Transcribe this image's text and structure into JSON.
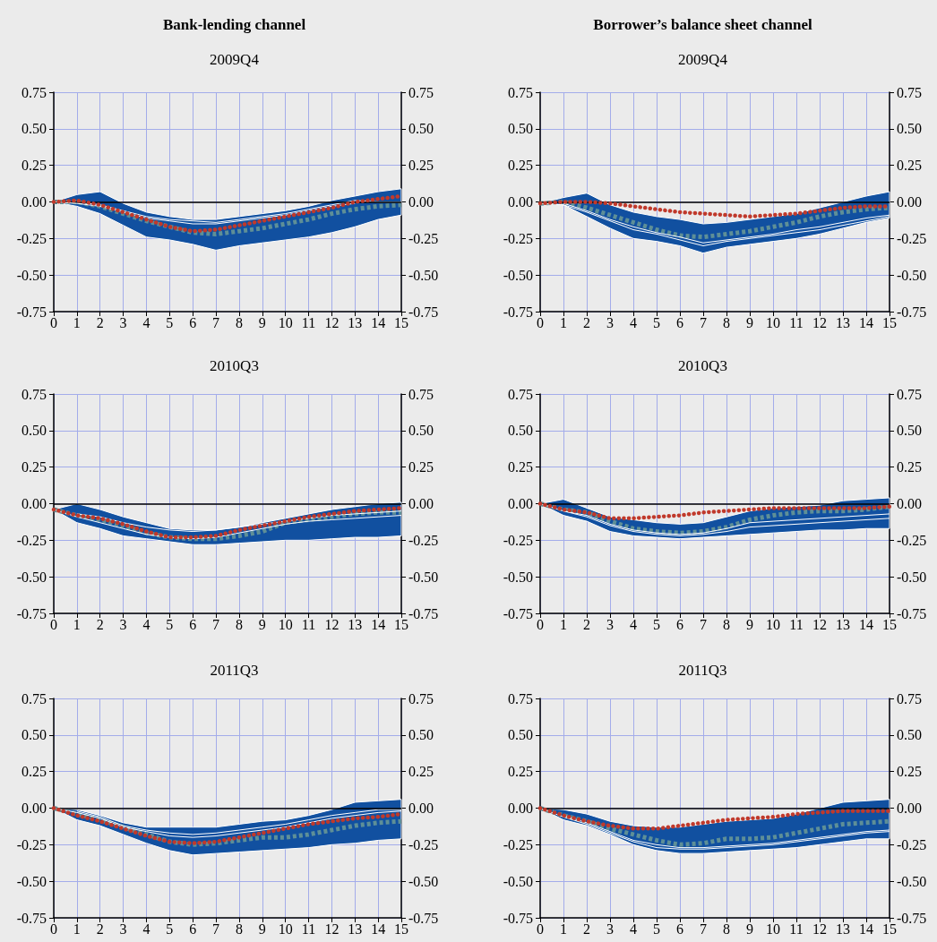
{
  "chart_data": [
    {
      "type": "line",
      "title": "Bank-lending channel",
      "subtitle": "2009Q4",
      "x": [
        0,
        1,
        2,
        3,
        4,
        5,
        6,
        7,
        8,
        9,
        10,
        11,
        12,
        13,
        14,
        15
      ],
      "xlim": [
        0,
        15
      ],
      "xticks": [
        0,
        1,
        2,
        3,
        4,
        5,
        6,
        7,
        8,
        9,
        10,
        11,
        12,
        13,
        14,
        15
      ],
      "ylim": [
        -0.75,
        0.75
      ],
      "yticks": [
        {
          "value": -0.75,
          "label": "-0.75"
        },
        {
          "value": -0.5,
          "label": "-0.50"
        },
        {
          "value": -0.25,
          "label": "-0.25"
        },
        {
          "value": 0,
          "label": "0.00"
        },
        {
          "value": 0.25,
          "label": "0.25"
        },
        {
          "value": 0.5,
          "label": "0.50"
        },
        {
          "value": 0.75,
          "label": "0.75"
        }
      ],
      "y2lim": [
        -0.75,
        0.75
      ],
      "y2ticks": [
        {
          "value": -0.75,
          "label": "-0.75"
        },
        {
          "value": -0.5,
          "label": "-0.50"
        },
        {
          "value": -0.25,
          "label": "-0.25"
        },
        {
          "value": 0,
          "label": "0.00"
        },
        {
          "value": 0.25,
          "label": "0.25"
        },
        {
          "value": 0.5,
          "label": "0.50"
        },
        {
          "value": 0.75,
          "label": "0.75"
        }
      ],
      "grid": true,
      "ref_lines": [
        {
          "axis": "y",
          "value": 0,
          "color": "#000000"
        }
      ],
      "series": [
        {
          "color": "#5e8f97",
          "line_style": "dashed",
          "values": [
            0,
            0,
            -0.03,
            -0.08,
            -0.13,
            -0.17,
            -0.21,
            -0.22,
            -0.2,
            -0.18,
            -0.15,
            -0.12,
            -0.08,
            -0.05,
            -0.03,
            -0.02
          ],
          "lower": [
            0,
            -0.03,
            -0.08,
            -0.16,
            -0.24,
            -0.26,
            -0.29,
            -0.33,
            -0.3,
            -0.28,
            -0.26,
            -0.24,
            -0.21,
            -0.17,
            -0.12,
            -0.09
          ],
          "upper": [
            0,
            0.05,
            0.07,
            -0.01,
            -0.07,
            -0.1,
            -0.12,
            -0.12,
            -0.1,
            -0.08,
            -0.06,
            -0.03,
            0.01,
            0.04,
            0.07,
            0.09
          ]
        },
        {
          "color": "#ffffff",
          "line_style": "solid",
          "values": [
            null,
            0,
            -0.02,
            -0.06,
            -0.1,
            -0.12,
            -0.13,
            -0.14,
            -0.12,
            -0.1,
            -0.08,
            -0.05,
            -0.02,
            0.01,
            0,
            0
          ]
        },
        {
          "color": "#ffffff",
          "line_style": "solid",
          "values": [
            0,
            -0.01,
            -0.03,
            -0.07,
            -0.11,
            -0.13,
            -0.15,
            -0.15,
            -0.13,
            -0.11,
            -0.09,
            -0.06,
            -0.03,
            -0.01,
            null,
            null
          ]
        },
        {
          "color": "#c0392b",
          "line_style": "dotted",
          "values": [
            0,
            0.01,
            -0.02,
            -0.07,
            -0.12,
            -0.17,
            -0.2,
            -0.19,
            -0.16,
            -0.13,
            -0.1,
            -0.07,
            -0.04,
            0,
            0.02,
            0.04
          ]
        }
      ]
    },
    {
      "type": "line",
      "title": "Borrower’s balance sheet channel",
      "subtitle": "2009Q4",
      "x": [
        0,
        1,
        2,
        3,
        4,
        5,
        6,
        7,
        8,
        9,
        10,
        11,
        12,
        13,
        14,
        15
      ],
      "xlim": [
        0,
        15
      ],
      "xticks": [
        0,
        1,
        2,
        3,
        4,
        5,
        6,
        7,
        8,
        9,
        10,
        11,
        12,
        13,
        14,
        15
      ],
      "ylim": [
        -0.75,
        0.75
      ],
      "yticks": [
        {
          "value": -0.75,
          "label": "-0.75"
        },
        {
          "value": -0.5,
          "label": "-0.50"
        },
        {
          "value": -0.25,
          "label": "-0.25"
        },
        {
          "value": 0,
          "label": "0.00"
        },
        {
          "value": 0.25,
          "label": "0.25"
        },
        {
          "value": 0.5,
          "label": "0.50"
        },
        {
          "value": 0.75,
          "label": "0.75"
        }
      ],
      "y2lim": [
        -0.75,
        0.75
      ],
      "y2ticks": [
        {
          "value": -0.75,
          "label": "-0.75"
        },
        {
          "value": -0.5,
          "label": "-0.50"
        },
        {
          "value": -0.25,
          "label": "-0.25"
        },
        {
          "value": 0,
          "label": "0.00"
        },
        {
          "value": 0.25,
          "label": "0.25"
        },
        {
          "value": 0.5,
          "label": "0.50"
        },
        {
          "value": 0.75,
          "label": "0.75"
        }
      ],
      "grid": true,
      "ref_lines": [
        {
          "axis": "y",
          "value": 0,
          "color": "#000000"
        }
      ],
      "series": [
        {
          "color": "#5e8f97",
          "line_style": "dashed",
          "values": [
            -0.01,
            0,
            -0.04,
            -0.09,
            -0.14,
            -0.19,
            -0.23,
            -0.24,
            -0.22,
            -0.2,
            -0.17,
            -0.14,
            -0.1,
            -0.07,
            -0.05,
            -0.04
          ],
          "lower": [
            -0.01,
            -0.02,
            -0.1,
            -0.18,
            -0.25,
            -0.27,
            -0.3,
            -0.35,
            -0.31,
            -0.29,
            -0.27,
            -0.25,
            -0.22,
            -0.18,
            -0.14,
            -0.11
          ],
          "upper": [
            -0.01,
            0.03,
            0.06,
            -0.02,
            -0.07,
            -0.1,
            -0.12,
            -0.15,
            -0.14,
            -0.12,
            -0.1,
            -0.08,
            -0.04,
            0,
            0.04,
            0.07
          ]
        },
        {
          "color": "#ffffff",
          "line_style": "solid",
          "values": [
            null,
            -0.01,
            -0.06,
            -0.12,
            -0.17,
            -0.21,
            -0.24,
            -0.28,
            -0.26,
            -0.24,
            -0.22,
            -0.19,
            -0.17,
            -0.14,
            -0.11,
            -0.09
          ]
        },
        {
          "color": "#ffffff",
          "line_style": "solid",
          "values": [
            -0.01,
            -0.02,
            -0.07,
            -0.13,
            -0.19,
            -0.22,
            -0.26,
            -0.3,
            -0.27,
            -0.25,
            -0.23,
            -0.21,
            -0.19,
            -0.16,
            -0.13,
            -0.1
          ]
        },
        {
          "color": "#c0392b",
          "line_style": "dotted",
          "values": [
            -0.01,
            0,
            0,
            -0.01,
            -0.03,
            -0.05,
            -0.07,
            -0.08,
            -0.09,
            -0.1,
            -0.09,
            -0.08,
            -0.06,
            -0.04,
            -0.03,
            -0.03
          ]
        }
      ]
    },
    {
      "type": "line",
      "title": "2010Q3",
      "x": [
        0,
        1,
        2,
        3,
        4,
        5,
        6,
        7,
        8,
        9,
        10,
        11,
        12,
        13,
        14,
        15
      ],
      "xlim": [
        0,
        15
      ],
      "xticks": [
        0,
        1,
        2,
        3,
        4,
        5,
        6,
        7,
        8,
        9,
        10,
        11,
        12,
        13,
        14,
        15
      ],
      "ylim": [
        -0.75,
        0.75
      ],
      "yticks": [
        {
          "value": -0.75,
          "label": "-0.75"
        },
        {
          "value": -0.5,
          "label": "-0.50"
        },
        {
          "value": -0.25,
          "label": "-0.25"
        },
        {
          "value": 0,
          "label": "0.00"
        },
        {
          "value": 0.25,
          "label": "0.25"
        },
        {
          "value": 0.5,
          "label": "0.50"
        },
        {
          "value": 0.75,
          "label": "0.75"
        }
      ],
      "y2lim": [
        -0.75,
        0.75
      ],
      "y2ticks": [
        {
          "value": -0.75,
          "label": "-0.75"
        },
        {
          "value": -0.5,
          "label": "-0.50"
        },
        {
          "value": -0.25,
          "label": "-0.25"
        },
        {
          "value": 0,
          "label": "0.00"
        },
        {
          "value": 0.25,
          "label": "0.25"
        },
        {
          "value": 0.5,
          "label": "0.50"
        },
        {
          "value": 0.75,
          "label": "0.75"
        }
      ],
      "grid": true,
      "ref_lines": [
        {
          "axis": "y",
          "value": 0,
          "color": "#000000"
        }
      ],
      "series": [
        {
          "color": "#5e8f97",
          "line_style": "dashed",
          "values": [
            -0.04,
            -0.08,
            -0.11,
            -0.15,
            -0.2,
            -0.23,
            -0.24,
            -0.24,
            -0.22,
            -0.19,
            -0.13,
            -0.11,
            -0.09,
            -0.07,
            -0.06,
            -0.06
          ],
          "lower": [
            -0.04,
            -0.13,
            -0.17,
            -0.22,
            -0.24,
            -0.26,
            -0.28,
            -0.28,
            -0.27,
            -0.26,
            -0.25,
            -0.25,
            -0.24,
            -0.23,
            -0.23,
            -0.22
          ],
          "upper": [
            -0.04,
            0,
            -0.04,
            -0.09,
            -0.13,
            -0.17,
            -0.18,
            -0.18,
            -0.16,
            -0.13,
            -0.1,
            -0.07,
            -0.04,
            -0.02,
            0,
            0.01
          ]
        },
        {
          "color": "#ffffff",
          "line_style": "solid",
          "values": [
            null,
            -0.07,
            -0.09,
            -0.13,
            -0.16,
            -0.18,
            -0.19,
            -0.18,
            -0.16,
            -0.14,
            -0.12,
            -0.1,
            -0.08,
            -0.07,
            -0.06,
            -0.05
          ]
        },
        {
          "color": "#ffffff",
          "line_style": "solid",
          "values": [
            -0.04,
            -0.09,
            -0.13,
            -0.17,
            -0.21,
            -0.23,
            -0.24,
            -0.23,
            -0.2,
            -0.17,
            -0.14,
            -0.12,
            -0.11,
            -0.1,
            -0.09,
            -0.08
          ]
        },
        {
          "color": "#c0392b",
          "line_style": "dotted",
          "values": [
            -0.04,
            -0.08,
            -0.1,
            -0.14,
            -0.19,
            -0.23,
            -0.23,
            -0.22,
            -0.18,
            -0.15,
            -0.12,
            -0.09,
            -0.07,
            -0.05,
            -0.04,
            -0.03
          ]
        }
      ]
    },
    {
      "type": "line",
      "title": "2010Q3",
      "x": [
        0,
        1,
        2,
        3,
        4,
        5,
        6,
        7,
        8,
        9,
        10,
        11,
        12,
        13,
        14,
        15
      ],
      "xlim": [
        0,
        15
      ],
      "xticks": [
        0,
        1,
        2,
        3,
        4,
        5,
        6,
        7,
        8,
        9,
        10,
        11,
        12,
        13,
        14,
        15
      ],
      "ylim": [
        -0.75,
        0.75
      ],
      "yticks": [
        {
          "value": -0.75,
          "label": "-0.75"
        },
        {
          "value": -0.5,
          "label": "-0.50"
        },
        {
          "value": -0.25,
          "label": "-0.25"
        },
        {
          "value": 0,
          "label": "0.00"
        },
        {
          "value": 0.25,
          "label": "0.25"
        },
        {
          "value": 0.5,
          "label": "0.50"
        },
        {
          "value": 0.75,
          "label": "0.75"
        }
      ],
      "y2lim": [
        -0.75,
        0.75
      ],
      "y2ticks": [
        {
          "value": -0.75,
          "label": "-0.75"
        },
        {
          "value": -0.5,
          "label": "-0.50"
        },
        {
          "value": -0.25,
          "label": "-0.25"
        },
        {
          "value": 0,
          "label": "0.00"
        },
        {
          "value": 0.25,
          "label": "0.25"
        },
        {
          "value": 0.5,
          "label": "0.50"
        },
        {
          "value": 0.75,
          "label": "0.75"
        }
      ],
      "grid": true,
      "ref_lines": [
        {
          "axis": "y",
          "value": 0,
          "color": "#000000"
        }
      ],
      "series": [
        {
          "color": "#5e8f97",
          "line_style": "dashed",
          "values": [
            0,
            -0.04,
            -0.06,
            -0.12,
            -0.17,
            -0.19,
            -0.2,
            -0.19,
            -0.16,
            -0.11,
            -0.08,
            -0.06,
            -0.05,
            -0.05,
            -0.04,
            -0.02
          ],
          "lower": [
            0,
            -0.08,
            -0.12,
            -0.19,
            -0.22,
            -0.23,
            -0.24,
            -0.23,
            -0.22,
            -0.21,
            -0.2,
            -0.19,
            -0.18,
            -0.18,
            -0.17,
            -0.17
          ],
          "upper": [
            0,
            0.03,
            -0.03,
            -0.09,
            -0.11,
            -0.13,
            -0.14,
            -0.13,
            -0.09,
            -0.05,
            -0.03,
            -0.02,
            -0.01,
            0.02,
            0.03,
            0.04
          ]
        },
        {
          "color": "#ffffff",
          "line_style": "solid",
          "values": [
            null,
            -0.05,
            -0.08,
            -0.14,
            -0.18,
            -0.2,
            -0.21,
            -0.2,
            -0.17,
            -0.13,
            -0.12,
            -0.11,
            -0.1,
            -0.09,
            -0.08,
            -0.07
          ]
        },
        {
          "color": "#ffffff",
          "line_style": "solid",
          "values": [
            0,
            -0.05,
            -0.09,
            -0.15,
            -0.19,
            -0.21,
            -0.22,
            -0.21,
            -0.19,
            -0.16,
            -0.15,
            -0.14,
            -0.13,
            -0.12,
            -0.11,
            -0.1
          ]
        },
        {
          "color": "#c0392b",
          "line_style": "dotted",
          "values": [
            0,
            -0.04,
            -0.06,
            -0.1,
            -0.1,
            -0.09,
            -0.08,
            -0.06,
            -0.05,
            -0.04,
            -0.03,
            -0.03,
            -0.03,
            -0.03,
            -0.03,
            -0.02
          ]
        }
      ]
    },
    {
      "type": "line",
      "title": "2011Q3",
      "x": [
        0,
        1,
        2,
        3,
        4,
        5,
        6,
        7,
        8,
        9,
        10,
        11,
        12,
        13,
        14,
        15
      ],
      "xlim": [
        0,
        15
      ],
      "xticks": [
        0,
        1,
        2,
        3,
        4,
        5,
        6,
        7,
        8,
        9,
        10,
        11,
        12,
        13,
        14,
        15
      ],
      "ylim": [
        -0.75,
        0.75
      ],
      "yticks": [
        {
          "value": -0.75,
          "label": "-0.75"
        },
        {
          "value": -0.5,
          "label": "-0.50"
        },
        {
          "value": -0.25,
          "label": "-0.25"
        },
        {
          "value": 0,
          "label": "0.00"
        },
        {
          "value": 0.25,
          "label": "0.25"
        },
        {
          "value": 0.5,
          "label": "0.50"
        },
        {
          "value": 0.75,
          "label": "0.75"
        }
      ],
      "y2lim": [
        -0.75,
        0.75
      ],
      "y2ticks": [
        {
          "value": -0.75,
          "label": "-0.75"
        },
        {
          "value": -0.5,
          "label": "-0.50"
        },
        {
          "value": -0.25,
          "label": "-0.25"
        },
        {
          "value": 0,
          "label": "0.00"
        },
        {
          "value": 0.25,
          "label": "0.25"
        },
        {
          "value": 0.5,
          "label": "0.50"
        },
        {
          "value": 0.75,
          "label": "0.75"
        }
      ],
      "grid": true,
      "ref_lines": [
        {
          "axis": "y",
          "value": 0,
          "color": "#000000"
        }
      ],
      "series": [
        {
          "color": "#5e8f97",
          "line_style": "dashed",
          "values": [
            0,
            -0.04,
            -0.08,
            -0.13,
            -0.18,
            -0.23,
            -0.25,
            -0.24,
            -0.22,
            -0.2,
            -0.2,
            -0.18,
            -0.15,
            -0.12,
            -0.1,
            -0.09
          ],
          "lower": [
            0,
            -0.08,
            -0.12,
            -0.18,
            -0.24,
            -0.29,
            -0.32,
            -0.31,
            -0.3,
            -0.29,
            -0.28,
            -0.27,
            -0.25,
            -0.24,
            -0.22,
            -0.21
          ],
          "upper": [
            0,
            -0.01,
            -0.05,
            -0.1,
            -0.13,
            -0.13,
            -0.13,
            -0.13,
            -0.11,
            -0.09,
            -0.08,
            -0.05,
            -0.01,
            0.04,
            0.05,
            0.06
          ]
        },
        {
          "color": "#ffffff",
          "line_style": "solid",
          "values": [
            null,
            -0.02,
            -0.06,
            -0.12,
            -0.15,
            -0.17,
            -0.18,
            -0.17,
            -0.15,
            -0.13,
            -0.11,
            -0.08,
            -0.05,
            -0.03,
            -0.01,
            -0.01
          ]
        },
        {
          "color": "#ffffff",
          "line_style": "solid",
          "values": [
            0,
            -0.03,
            -0.07,
            -0.13,
            -0.16,
            -0.19,
            -0.2,
            -0.19,
            -0.17,
            -0.15,
            -0.13,
            -0.1,
            -0.07,
            -0.05,
            -0.03,
            -0.02
          ]
        },
        {
          "color": "#c0392b",
          "line_style": "dotted",
          "values": [
            0,
            -0.05,
            -0.09,
            -0.14,
            -0.19,
            -0.23,
            -0.24,
            -0.23,
            -0.2,
            -0.17,
            -0.14,
            -0.11,
            -0.09,
            -0.07,
            -0.06,
            -0.04
          ]
        }
      ]
    },
    {
      "type": "line",
      "title": "2011Q3",
      "x": [
        0,
        1,
        2,
        3,
        4,
        5,
        6,
        7,
        8,
        9,
        10,
        11,
        12,
        13,
        14,
        15
      ],
      "xlim": [
        0,
        15
      ],
      "xticks": [
        0,
        1,
        2,
        3,
        4,
        5,
        6,
        7,
        8,
        9,
        10,
        11,
        12,
        13,
        14,
        15
      ],
      "ylim": [
        -0.75,
        0.75
      ],
      "yticks": [
        {
          "value": -0.75,
          "label": "-0.75"
        },
        {
          "value": -0.5,
          "label": "-0.50"
        },
        {
          "value": -0.25,
          "label": "-0.25"
        },
        {
          "value": 0,
          "label": "0.00"
        },
        {
          "value": 0.25,
          "label": "0.25"
        },
        {
          "value": 0.5,
          "label": "0.50"
        },
        {
          "value": 0.75,
          "label": "0.75"
        }
      ],
      "y2lim": [
        -0.75,
        0.75
      ],
      "y2ticks": [
        {
          "value": -0.75,
          "label": "-0.75"
        },
        {
          "value": -0.5,
          "label": "-0.50"
        },
        {
          "value": -0.25,
          "label": "-0.25"
        },
        {
          "value": 0,
          "label": "0.00"
        },
        {
          "value": 0.25,
          "label": "0.25"
        },
        {
          "value": 0.5,
          "label": "0.50"
        },
        {
          "value": 0.75,
          "label": "0.75"
        }
      ],
      "grid": true,
      "ref_lines": [
        {
          "axis": "y",
          "value": 0,
          "color": "#000000"
        }
      ],
      "series": [
        {
          "color": "#5e8f97",
          "line_style": "dashed",
          "values": [
            0,
            -0.05,
            -0.09,
            -0.14,
            -0.18,
            -0.22,
            -0.25,
            -0.24,
            -0.21,
            -0.21,
            -0.2,
            -0.17,
            -0.14,
            -0.11,
            -0.1,
            -0.09
          ],
          "lower": [
            0,
            -0.08,
            -0.12,
            -0.18,
            -0.25,
            -0.29,
            -0.31,
            -0.31,
            -0.3,
            -0.29,
            -0.28,
            -0.27,
            -0.25,
            -0.23,
            -0.21,
            -0.21
          ],
          "upper": [
            0,
            -0.01,
            -0.04,
            -0.09,
            -0.12,
            -0.13,
            -0.13,
            -0.11,
            -0.09,
            -0.08,
            -0.07,
            -0.04,
            0,
            0.04,
            0.05,
            0.06
          ]
        },
        {
          "color": "#ffffff",
          "line_style": "solid",
          "values": [
            null,
            -0.05,
            -0.1,
            -0.16,
            -0.22,
            -0.25,
            -0.27,
            -0.27,
            -0.26,
            -0.25,
            -0.24,
            -0.22,
            -0.2,
            -0.18,
            -0.16,
            -0.15
          ]
        },
        {
          "color": "#ffffff",
          "line_style": "solid",
          "values": [
            0,
            -0.06,
            -0.11,
            -0.17,
            -0.23,
            -0.27,
            -0.28,
            -0.28,
            -0.27,
            -0.26,
            -0.25,
            -0.23,
            -0.21,
            -0.19,
            -0.17,
            -0.16
          ]
        },
        {
          "color": "#c0392b",
          "line_style": "dotted",
          "values": [
            0,
            -0.05,
            -0.09,
            -0.12,
            -0.14,
            -0.14,
            -0.12,
            -0.1,
            -0.08,
            -0.07,
            -0.06,
            -0.04,
            -0.03,
            -0.02,
            -0.02,
            -0.02
          ]
        }
      ]
    }
  ]
}
